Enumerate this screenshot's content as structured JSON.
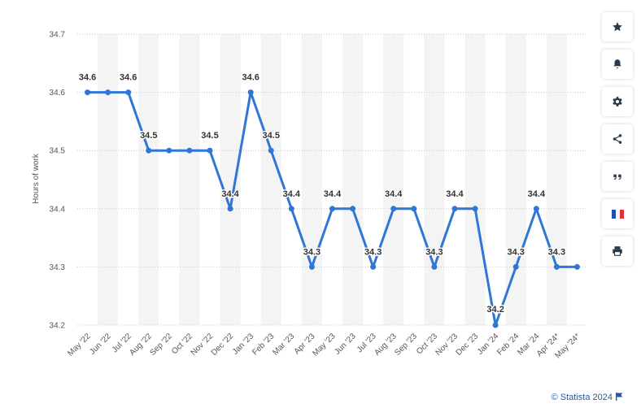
{
  "chart_data": {
    "type": "line",
    "title": "",
    "ylabel": "Hours of work",
    "xlabel": "",
    "ylim": [
      34.2,
      34.7
    ],
    "yticks": [
      "34.2",
      "34.3",
      "34.4",
      "34.5",
      "34.6",
      "34.7"
    ],
    "grid": true,
    "categories": [
      "May '22",
      "Jun '22",
      "Jul '22",
      "Aug '22",
      "Sep '22",
      "Oct '22",
      "Nov '22",
      "Dec '22",
      "Jan '23",
      "Feb '23",
      "Mar '23",
      "Apr '23",
      "May '23",
      "Jun '23",
      "Jul '23",
      "Aug '23",
      "Sep '23",
      "Oct '23",
      "Nov '23",
      "Dec '23",
      "Jan '24",
      "Feb '24",
      "Mar '24",
      "Apr '24*",
      "May '24*"
    ],
    "series": [
      {
        "values": [
          34.6,
          34.6,
          34.6,
          34.5,
          34.5,
          34.5,
          34.5,
          34.4,
          34.6,
          34.5,
          34.4,
          34.3,
          34.4,
          34.4,
          34.3,
          34.4,
          34.4,
          34.3,
          34.4,
          34.4,
          34.2,
          34.3,
          34.4,
          34.3,
          34.3
        ],
        "color": "#2f76d6"
      }
    ],
    "data_labels": [
      {
        "index": 0,
        "text": "34.6"
      },
      {
        "index": 2,
        "text": "34.6"
      },
      {
        "index": 3,
        "text": "34.5"
      },
      {
        "index": 6,
        "text": "34.5"
      },
      {
        "index": 7,
        "text": "34.4"
      },
      {
        "index": 8,
        "text": "34.6"
      },
      {
        "index": 9,
        "text": "34.5"
      },
      {
        "index": 10,
        "text": "34.4"
      },
      {
        "index": 11,
        "text": "34.3"
      },
      {
        "index": 12,
        "text": "34.4"
      },
      {
        "index": 14,
        "text": "34.3"
      },
      {
        "index": 15,
        "text": "34.4"
      },
      {
        "index": 17,
        "text": "34.3"
      },
      {
        "index": 18,
        "text": "34.4"
      },
      {
        "index": 20,
        "text": "34.2"
      },
      {
        "index": 21,
        "text": "34.3"
      },
      {
        "index": 22,
        "text": "34.4"
      },
      {
        "index": 23,
        "text": "34.3"
      }
    ]
  },
  "sidebar": {
    "buttons": [
      {
        "icon": "star-icon"
      },
      {
        "icon": "bell-icon"
      },
      {
        "icon": "gear-icon"
      },
      {
        "icon": "share-icon"
      },
      {
        "icon": "quote-icon"
      },
      {
        "icon": "french-flag-icon"
      },
      {
        "icon": "print-icon"
      }
    ]
  },
  "credit": {
    "text": "© Statista 2024"
  },
  "colors": {
    "line": "#2f76d6",
    "band": "#f4f4f5",
    "grid": "#c8c8c8",
    "axis_text": "#555555",
    "credit": "#1f5aa8"
  }
}
